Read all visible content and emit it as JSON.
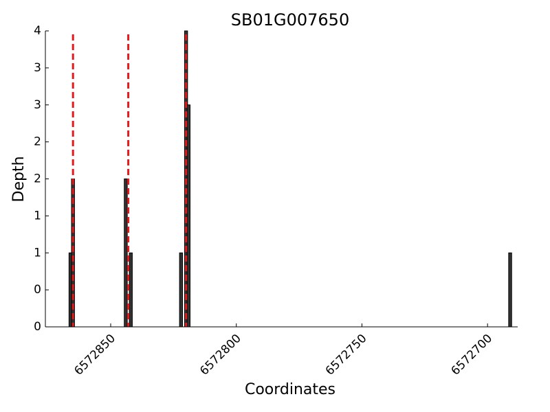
{
  "chart_data": {
    "type": "bar",
    "title": "SB01G007650",
    "x_label": "Coordinates",
    "y_label": "Depth",
    "x": [
      6572866,
      6572865,
      6572844,
      6572842,
      6572822,
      6572820,
      6572819,
      6572691
    ],
    "values": [
      1,
      2,
      2,
      1,
      1,
      4,
      3,
      1
    ],
    "color": "#333333",
    "edge_color": "#000000",
    "vlines": [
      6572865,
      6572843,
      6572820
    ],
    "vline_color": "#e41a1c",
    "xlim": [
      6572876,
      6572688
    ],
    "ylim": [
      0,
      4
    ],
    "xticks": [
      6572850,
      6572800,
      6572750,
      6572700
    ],
    "yticks": [
      0,
      {
        "value": 0.5,
        "label": "0"
      },
      1,
      {
        "value": 1.5,
        "label": "1"
      },
      2,
      {
        "value": 2.5,
        "label": "2"
      },
      3,
      {
        "value": 3.5,
        "label": "3"
      },
      4
    ]
  }
}
